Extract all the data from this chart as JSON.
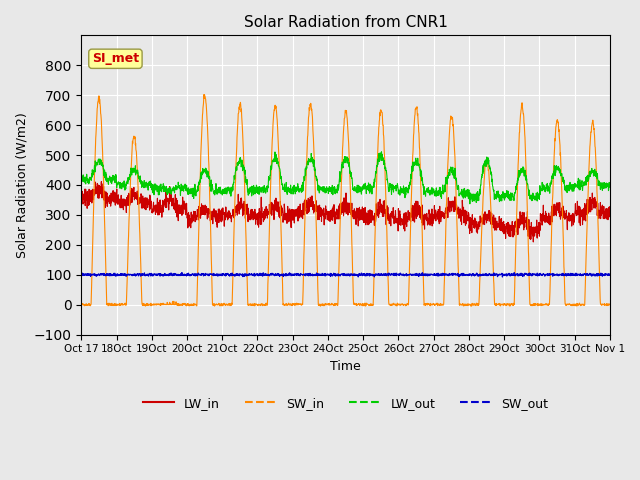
{
  "title": "Solar Radiation from CNR1",
  "xlabel": "Time",
  "ylabel": "Solar Radiation (W/m2)",
  "ylim": [
    -100,
    900
  ],
  "yticks": [
    -100,
    0,
    100,
    200,
    300,
    400,
    500,
    600,
    700,
    800
  ],
  "line_colors": {
    "LW_in": "#cc0000",
    "SW_in": "#ff8800",
    "LW_out": "#00cc00",
    "SW_out": "#0000cc"
  },
  "annotation_text": "SI_met",
  "annotation_color": "#cc0000",
  "annotation_bg": "#ffff99",
  "xticklabels": [
    "Oct 17",
    "18Oct",
    "19Oct",
    "20Oct",
    "21Oct",
    "22Oct",
    "23Oct",
    "24Oct",
    "25Oct",
    "26Oct",
    "27Oct",
    "28Oct",
    "29Oct",
    "30Oct",
    "31Oct",
    "Nov 1"
  ],
  "num_days": 15,
  "points_per_day": 144,
  "sw_in_peaks": [
    690,
    560,
    0,
    700,
    670,
    665,
    670,
    645,
    650,
    660,
    630,
    480,
    665,
    615,
    610
  ],
  "lw_in_bases": [
    355,
    340,
    320,
    290,
    300,
    300,
    310,
    300,
    290,
    285,
    300,
    270,
    250,
    290,
    310
  ],
  "lw_out_bases": [
    420,
    400,
    390,
    380,
    380,
    385,
    385,
    385,
    390,
    380,
    375,
    360,
    360,
    390,
    400
  ],
  "lw_out_peaks": [
    480,
    450,
    380,
    450,
    480,
    490,
    490,
    490,
    495,
    480,
    450,
    480,
    450,
    455,
    445
  ]
}
